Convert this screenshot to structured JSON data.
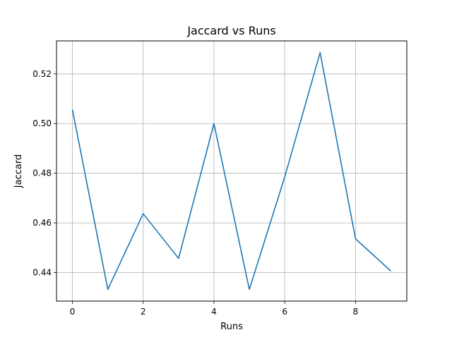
{
  "chart_data": {
    "type": "line",
    "title": "Jaccard vs Runs",
    "xlabel": "Runs",
    "ylabel": "Jaccard",
    "x": [
      0,
      1,
      2,
      3,
      4,
      5,
      6,
      7,
      8,
      9
    ],
    "series": [
      {
        "values": [
          0.5056,
          0.4332,
          0.4637,
          0.4457,
          0.5,
          0.4332,
          0.4785,
          0.5286,
          0.4536,
          0.4406
        ],
        "color": "#1f77b4"
      }
    ],
    "xlim": [
      -0.45,
      9.45
    ],
    "ylim": [
      0.4285,
      0.5333
    ],
    "xticks": [
      0,
      2,
      4,
      6,
      8
    ],
    "yticks": [
      0.44,
      0.46,
      0.48,
      0.5,
      0.52
    ],
    "xtick_labels": [
      "0",
      "2",
      "4",
      "6",
      "8"
    ],
    "ytick_labels": [
      "0.44",
      "0.46",
      "0.48",
      "0.50",
      "0.52"
    ],
    "grid": true,
    "legend": false
  }
}
